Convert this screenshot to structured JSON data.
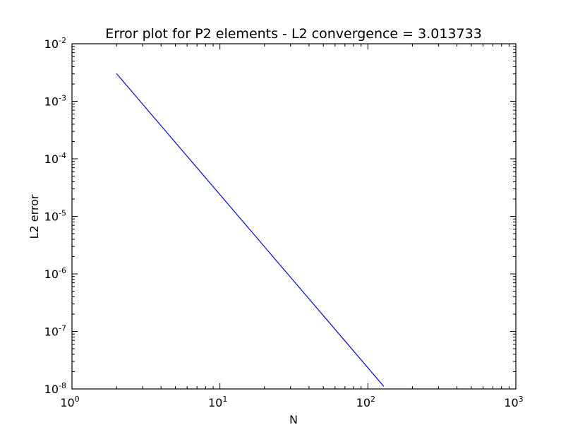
{
  "chart_data": {
    "type": "line",
    "title": "Error plot for P2 elements - L2 convergence = 3.013733",
    "xlabel": "N",
    "ylabel": "L2 error",
    "xscale": "log",
    "yscale": "log",
    "xlim": [
      1,
      1000
    ],
    "ylim": [
      1e-08,
      0.01
    ],
    "grid": false,
    "series": [
      {
        "color": "#0000ff",
        "x": [
          2,
          4,
          8,
          16,
          32,
          64,
          128
        ],
        "y": [
          0.00303,
          0.000376,
          4.67e-05,
          5.8e-06,
          7.2e-07,
          8.95e-08,
          1.11e-08
        ]
      }
    ],
    "xticks": [
      {
        "value": 1,
        "base": "10",
        "exp": "0"
      },
      {
        "value": 10,
        "base": "10",
        "exp": "1"
      },
      {
        "value": 100,
        "base": "10",
        "exp": "2"
      },
      {
        "value": 1000,
        "base": "10",
        "exp": "3"
      }
    ],
    "yticks": [
      {
        "value": 1e-08,
        "base": "10",
        "exp": "-8"
      },
      {
        "value": 1e-07,
        "base": "10",
        "exp": "-7"
      },
      {
        "value": 1e-06,
        "base": "10",
        "exp": "-6"
      },
      {
        "value": 1e-05,
        "base": "10",
        "exp": "-5"
      },
      {
        "value": 0.0001,
        "base": "10",
        "exp": "-4"
      },
      {
        "value": 0.001,
        "base": "10",
        "exp": "-3"
      },
      {
        "value": 0.01,
        "base": "10",
        "exp": "-2"
      }
    ]
  }
}
